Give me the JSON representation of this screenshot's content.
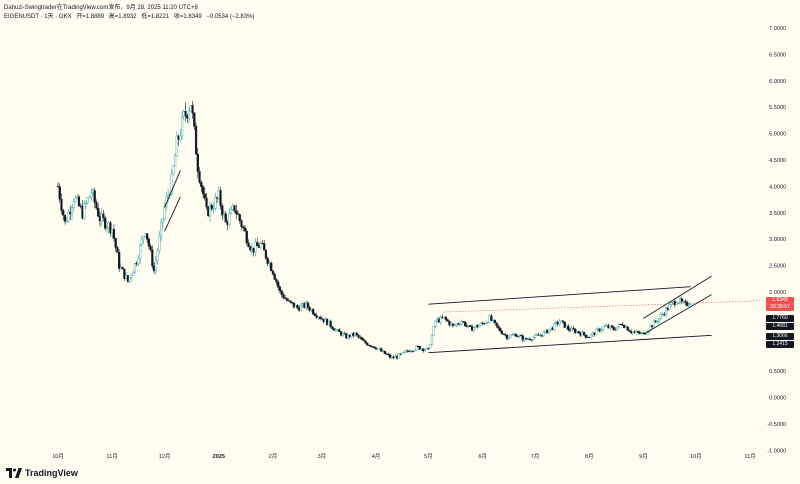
{
  "header": {
    "title": "Dahuzi-Swingtrader在TradingView.com发布，9月 28, 2025 11:20 UTC+8",
    "symbol": "EIGENUSDT · 1天 · OKX",
    "open": "开=1.8889",
    "high": "高=1.8932",
    "low": "低=1.8221",
    "close": "收=1.8349",
    "change": "−0.0534 (−2.83%)"
  },
  "footer": {
    "logo_text": "TradingView"
  },
  "colors": {
    "background": "#fffdf0",
    "up": "#26a69a",
    "down": "#131722",
    "last_price": "#ef5350",
    "dotted_line": "#ef5350"
  },
  "price_tags": [
    {
      "label": "1.8349",
      "color": "#ef5350"
    },
    {
      "label": "20:39:57",
      "color": "#ef5350"
    },
    {
      "label": "1.7760",
      "color": "#131722"
    },
    {
      "label": "1.4681",
      "color": "#131722"
    },
    {
      "label": "1.3066",
      "color": "#131722"
    },
    {
      "label": "1.2415",
      "color": "#131722"
    }
  ],
  "chart_data": {
    "type": "candlestick",
    "ylim": [
      -1.0,
      7.25
    ],
    "y_ticks": [
      "7.0000",
      "6.5000",
      "6.0000",
      "5.5000",
      "5.0000",
      "4.5000",
      "4.0000",
      "3.5000",
      "3.0000",
      "2.5000",
      "2.0000",
      "1.5000",
      "1.0000",
      "0.5000",
      "0.0000",
      "-0.5000",
      "-1.0000"
    ],
    "y_tick_values": [
      7.0,
      6.5,
      6.0,
      5.5,
      5.0,
      4.5,
      4.0,
      3.5,
      3.0,
      2.5,
      2.0,
      1.5,
      1.0,
      0.5,
      0.0,
      -0.5,
      -1.0
    ],
    "x_ticks": [
      "10月",
      "11月",
      "12月",
      "2025",
      "2月",
      "3月",
      "4月",
      "5月",
      "6月",
      "7月",
      "8月",
      "9月",
      "10月",
      "11月"
    ],
    "x_tick_dates": [
      "2024-10-01",
      "2024-11-01",
      "2024-12-01",
      "2025-01-01",
      "2025-02-01",
      "2025-03-01",
      "2025-04-01",
      "2025-05-01",
      "2025-06-01",
      "2025-07-01",
      "2025-08-01",
      "2025-09-01",
      "2025-10-01",
      "2025-11-01"
    ],
    "price_path": [
      [
        "2024-10-01",
        4.0
      ],
      [
        "2024-10-05",
        3.3
      ],
      [
        "2024-10-10",
        3.8
      ],
      [
        "2024-10-15",
        3.5
      ],
      [
        "2024-10-20",
        3.9
      ],
      [
        "2024-10-25",
        3.4
      ],
      [
        "2024-11-01",
        3.2
      ],
      [
        "2024-11-05",
        2.5
      ],
      [
        "2024-11-10",
        2.2
      ],
      [
        "2024-11-15",
        2.6
      ],
      [
        "2024-11-20",
        3.2
      ],
      [
        "2024-11-25",
        2.4
      ],
      [
        "2024-12-01",
        3.6
      ],
      [
        "2024-12-05",
        4.1
      ],
      [
        "2024-12-08",
        4.8
      ],
      [
        "2024-12-12",
        5.3
      ],
      [
        "2024-12-16",
        5.6
      ],
      [
        "2024-12-20",
        4.4
      ],
      [
        "2024-12-25",
        3.5
      ],
      [
        "2025-01-01",
        3.8
      ],
      [
        "2025-01-05",
        3.3
      ],
      [
        "2025-01-10",
        3.6
      ],
      [
        "2025-01-15",
        3.2
      ],
      [
        "2025-01-20",
        2.8
      ],
      [
        "2025-01-25",
        2.9
      ],
      [
        "2025-02-01",
        2.4
      ],
      [
        "2025-02-05",
        2.0
      ],
      [
        "2025-02-10",
        1.8
      ],
      [
        "2025-02-15",
        1.7
      ],
      [
        "2025-02-20",
        1.75
      ],
      [
        "2025-02-25",
        1.6
      ],
      [
        "2025-03-01",
        1.5
      ],
      [
        "2025-03-05",
        1.4
      ],
      [
        "2025-03-10",
        1.25
      ],
      [
        "2025-03-15",
        1.15
      ],
      [
        "2025-03-20",
        1.2
      ],
      [
        "2025-03-25",
        1.05
      ],
      [
        "2025-04-01",
        0.95
      ],
      [
        "2025-04-05",
        0.85
      ],
      [
        "2025-04-10",
        0.75
      ],
      [
        "2025-04-15",
        0.8
      ],
      [
        "2025-04-20",
        0.9
      ],
      [
        "2025-04-25",
        0.95
      ],
      [
        "2025-05-01",
        0.9
      ],
      [
        "2025-05-05",
        1.45
      ],
      [
        "2025-05-10",
        1.5
      ],
      [
        "2025-05-15",
        1.35
      ],
      [
        "2025-05-20",
        1.45
      ],
      [
        "2025-05-25",
        1.3
      ],
      [
        "2025-06-01",
        1.4
      ],
      [
        "2025-06-05",
        1.5
      ],
      [
        "2025-06-10",
        1.3
      ],
      [
        "2025-06-15",
        1.15
      ],
      [
        "2025-06-20",
        1.2
      ],
      [
        "2025-06-25",
        1.1
      ],
      [
        "2025-07-01",
        1.15
      ],
      [
        "2025-07-05",
        1.2
      ],
      [
        "2025-07-10",
        1.3
      ],
      [
        "2025-07-15",
        1.45
      ],
      [
        "2025-07-20",
        1.3
      ],
      [
        "2025-07-25",
        1.25
      ],
      [
        "2025-08-01",
        1.15
      ],
      [
        "2025-08-05",
        1.25
      ],
      [
        "2025-08-10",
        1.35
      ],
      [
        "2025-08-15",
        1.3
      ],
      [
        "2025-08-20",
        1.4
      ],
      [
        "2025-08-25",
        1.25
      ],
      [
        "2025-09-01",
        1.2
      ],
      [
        "2025-09-05",
        1.35
      ],
      [
        "2025-09-10",
        1.5
      ],
      [
        "2025-09-15",
        1.7
      ],
      [
        "2025-09-20",
        1.85
      ],
      [
        "2025-09-25",
        1.75
      ],
      [
        "2025-09-28",
        1.8349
      ]
    ],
    "trend_lines": [
      {
        "from": [
          "2024-12-01",
          3.15
        ],
        "to": [
          "2024-12-10",
          3.8
        ]
      },
      {
        "from": [
          "2024-12-01",
          3.6
        ],
        "to": [
          "2024-12-10",
          4.3
        ]
      },
      {
        "from": [
          "2025-05-01",
          1.77
        ],
        "to": [
          "2025-09-28",
          2.1
        ]
      },
      {
        "from": [
          "2025-05-01",
          0.85
        ],
        "to": [
          "2025-10-10",
          1.18
        ]
      },
      {
        "from": [
          "2025-09-01",
          1.5
        ],
        "to": [
          "2025-10-10",
          2.3
        ]
      },
      {
        "from": [
          "2025-09-01",
          1.2
        ],
        "to": [
          "2025-10-10",
          1.95
        ]
      }
    ]
  }
}
